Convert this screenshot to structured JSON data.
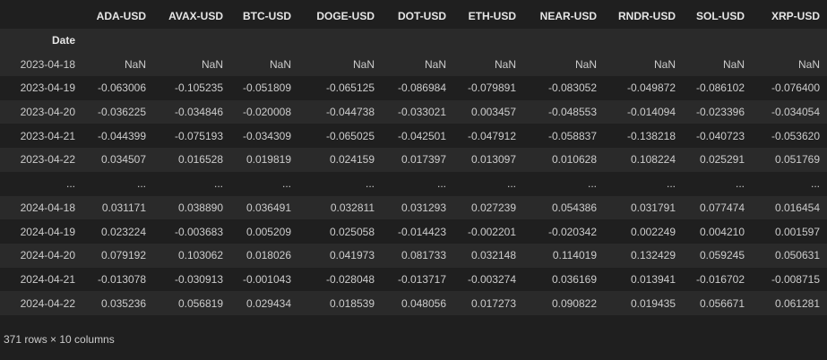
{
  "table": {
    "columns": [
      "ADA-USD",
      "AVAX-USD",
      "BTC-USD",
      "DOGE-USD",
      "DOT-USD",
      "ETH-USD",
      "NEAR-USD",
      "RNDR-USD",
      "SOL-USD",
      "XRP-USD"
    ],
    "index_name": "Date",
    "rows": [
      {
        "index": "2023-04-18",
        "values": [
          "NaN",
          "NaN",
          "NaN",
          "NaN",
          "NaN",
          "NaN",
          "NaN",
          "NaN",
          "NaN",
          "NaN"
        ]
      },
      {
        "index": "2023-04-19",
        "values": [
          "-0.063006",
          "-0.105235",
          "-0.051809",
          "-0.065125",
          "-0.086984",
          "-0.079891",
          "-0.083052",
          "-0.049872",
          "-0.086102",
          "-0.076400"
        ]
      },
      {
        "index": "2023-04-20",
        "values": [
          "-0.036225",
          "-0.034846",
          "-0.020008",
          "-0.044738",
          "-0.033021",
          "0.003457",
          "-0.048553",
          "-0.014094",
          "-0.023396",
          "-0.034054"
        ]
      },
      {
        "index": "2023-04-21",
        "values": [
          "-0.044399",
          "-0.075193",
          "-0.034309",
          "-0.065025",
          "-0.042501",
          "-0.047912",
          "-0.058837",
          "-0.138218",
          "-0.040723",
          "-0.053620"
        ]
      },
      {
        "index": "2023-04-22",
        "values": [
          "0.034507",
          "0.016528",
          "0.019819",
          "0.024159",
          "0.017397",
          "0.013097",
          "0.010628",
          "0.108224",
          "0.025291",
          "0.051769"
        ]
      },
      {
        "index": "...",
        "values": [
          "...",
          "...",
          "...",
          "...",
          "...",
          "...",
          "...",
          "...",
          "...",
          "..."
        ]
      },
      {
        "index": "2024-04-18",
        "values": [
          "0.031171",
          "0.038890",
          "0.036491",
          "0.032811",
          "0.031293",
          "0.027239",
          "0.054386",
          "0.031791",
          "0.077474",
          "0.016454"
        ]
      },
      {
        "index": "2024-04-19",
        "values": [
          "0.023224",
          "-0.003683",
          "0.005209",
          "0.025058",
          "-0.014423",
          "-0.002201",
          "-0.020342",
          "0.002249",
          "0.004210",
          "0.001597"
        ]
      },
      {
        "index": "2024-04-20",
        "values": [
          "0.079192",
          "0.103062",
          "0.018026",
          "0.041973",
          "0.081733",
          "0.032148",
          "0.114019",
          "0.132429",
          "0.059245",
          "0.050631"
        ]
      },
      {
        "index": "2024-04-21",
        "values": [
          "-0.013078",
          "-0.030913",
          "-0.001043",
          "-0.028048",
          "-0.013717",
          "-0.003274",
          "0.036169",
          "0.013941",
          "-0.016702",
          "-0.008715"
        ]
      },
      {
        "index": "2024-04-22",
        "values": [
          "0.035236",
          "0.056819",
          "0.029434",
          "0.018539",
          "0.048056",
          "0.017273",
          "0.090822",
          "0.019435",
          "0.056671",
          "0.061281"
        ]
      }
    ]
  },
  "shape_text": "371 rows × 10 columns"
}
